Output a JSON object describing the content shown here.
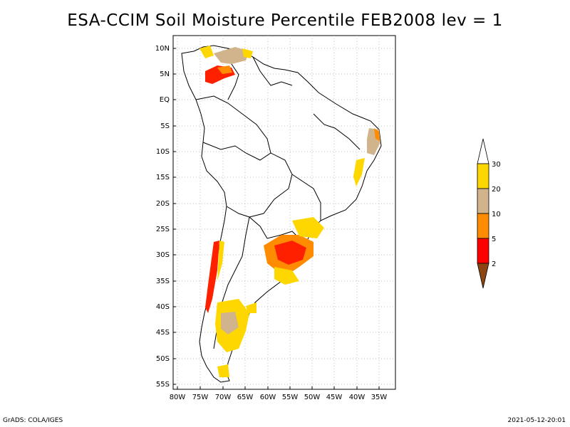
{
  "title": "ESA-CCIM Soil Moisture Percentile FEB2008 lev = 1",
  "footer": {
    "left": "GrADS: COLA/IGES",
    "right": "2021-05-12-20:01"
  },
  "axes": {
    "lat_ticks": [
      "10N",
      "5N",
      "EQ",
      "5S",
      "10S",
      "15S",
      "20S",
      "25S",
      "30S",
      "35S",
      "40S",
      "45S",
      "50S",
      "55S"
    ],
    "lon_ticks": [
      "80W",
      "75W",
      "70W",
      "65W",
      "60W",
      "55W",
      "50W",
      "45W",
      "40W",
      "35W"
    ]
  },
  "legend": {
    "levels": [
      "2",
      "5",
      "10",
      "20",
      "30"
    ],
    "colors": [
      "#8b4513",
      "#ff0000",
      "#ff8c00",
      "#d2b48c",
      "#ffd700",
      "#ffffff"
    ]
  },
  "colors": {
    "red": "#ff2000",
    "orange": "#ff8c00",
    "tan": "#d2b48c",
    "gold": "#ffd700",
    "brown": "#8b4513"
  }
}
